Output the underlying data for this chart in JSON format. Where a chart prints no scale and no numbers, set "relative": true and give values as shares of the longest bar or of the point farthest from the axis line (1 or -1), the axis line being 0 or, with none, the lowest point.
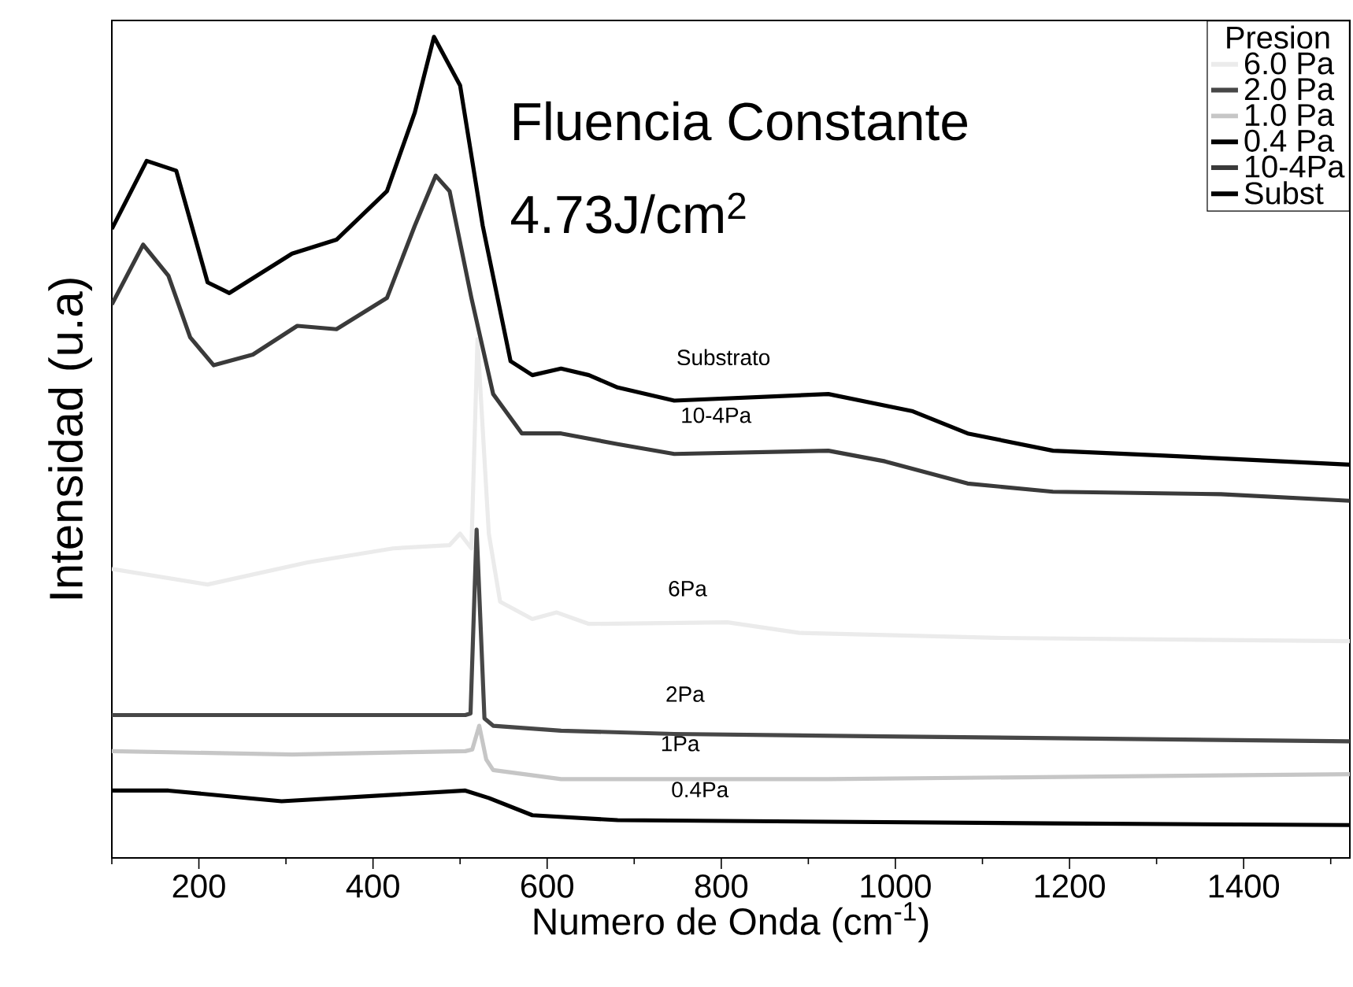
{
  "chart_data": {
    "type": "line",
    "relative": true,
    "xlabel": "Numero de Onda (cm$^{-1}$)",
    "ylabel": "Intensidad (u.a)",
    "legend_title": "Presion",
    "legend": "top right",
    "grid": false,
    "marker": "none",
    "line_style": "solid",
    "xlim": [
      100,
      1522
    ],
    "xticks": [
      {
        "value": 100,
        "label": null
      },
      200,
      {
        "value": 300,
        "label": null
      },
      400,
      {
        "value": 500,
        "label": null
      },
      600,
      {
        "value": 700,
        "label": null
      },
      800,
      {
        "value": 900,
        "label": null
      },
      1000,
      {
        "value": 1100,
        "label": null
      },
      1200,
      {
        "value": 1300,
        "label": null
      },
      1400,
      {
        "value": 1500,
        "label": null
      }
    ],
    "series": [
      {
        "name": "6.0 Pa",
        "color": "#ebebeb",
        "x": [
          100,
          210,
          325,
          423,
          488,
          500,
          513,
          520,
          533,
          546,
          583,
          611,
          648,
          807,
          890,
          1116,
          1522
        ],
        "values": [
          0.352,
          0.333,
          0.36,
          0.377,
          0.381,
          0.395,
          0.377,
          0.632,
          0.395,
          0.312,
          0.291,
          0.299,
          0.285,
          0.287,
          0.274,
          0.268,
          0.264
        ]
      },
      {
        "name": "2.0 Pa",
        "color": "#474747",
        "x": [
          100,
          307,
          506,
          512,
          519,
          528,
          538,
          616,
          746,
          988,
          1522
        ],
        "values": [
          0.174,
          0.174,
          0.174,
          0.176,
          0.4,
          0.17,
          0.161,
          0.155,
          0.151,
          0.148,
          0.142
        ]
      },
      {
        "name": "1.0 Pa",
        "color": "#c6c6c6",
        "x": [
          100,
          307,
          506,
          514,
          522,
          530,
          538,
          616,
          923,
          1522
        ],
        "values": [
          0.13,
          0.126,
          0.13,
          0.132,
          0.161,
          0.12,
          0.107,
          0.096,
          0.096,
          0.102
        ]
      },
      {
        "name": "0.4 Pa",
        "color": "#000000",
        "x": [
          100,
          165,
          295,
          506,
          533,
          583,
          681,
          1181,
          1522
        ],
        "values": [
          0.082,
          0.082,
          0.069,
          0.082,
          0.073,
          0.052,
          0.046,
          0.042,
          0.04
        ]
      },
      {
        "name": "10-4Pa",
        "color": "#3a3a3a",
        "x": [
          100,
          136,
          165,
          190,
          217,
          262,
          313,
          358,
          416,
          448,
          472,
          488,
          513,
          538,
          571,
          616,
          681,
          746,
          923,
          988,
          1083,
          1181,
          1374,
          1522
        ],
        "values": [
          0.674,
          0.747,
          0.709,
          0.634,
          0.6,
          0.613,
          0.648,
          0.644,
          0.682,
          0.77,
          0.831,
          0.812,
          0.682,
          0.565,
          0.517,
          0.517,
          0.504,
          0.492,
          0.496,
          0.483,
          0.456,
          0.446,
          0.443,
          0.435
        ]
      },
      {
        "name": "Subst",
        "color": "#000000",
        "x": [
          100,
          140,
          174,
          210,
          235,
          307,
          358,
          416,
          448,
          470,
          500,
          526,
          558,
          583,
          616,
          648,
          681,
          746,
          923,
          1020,
          1083,
          1181,
          1309,
          1522
        ],
        "values": [
          0.766,
          0.849,
          0.837,
          0.701,
          0.688,
          0.736,
          0.753,
          0.812,
          0.908,
          1.0,
          0.941,
          0.77,
          0.605,
          0.588,
          0.596,
          0.588,
          0.573,
          0.557,
          0.565,
          0.544,
          0.517,
          0.496,
          0.49,
          0.479
        ]
      }
    ],
    "annotations": [
      "Fluencia Constante",
      "4.73J/cm$^{2}$",
      "Substrato",
      "10-4Pa",
      "6Pa",
      "2Pa",
      "1Pa",
      "0.4Pa"
    ]
  }
}
